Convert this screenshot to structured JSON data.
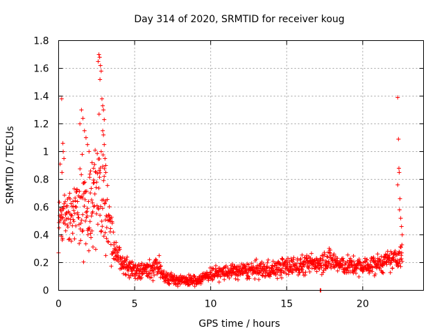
{
  "chart_data": {
    "type": "scatter",
    "title": "Day 314 of 2020, SRMTID for receiver koug",
    "xlabel": "GPS time / hours",
    "ylabel": "SRMTID / TECUs",
    "xlim": [
      0,
      24
    ],
    "ylim": [
      0,
      1.8
    ],
    "x_ticks": [
      0,
      5,
      10,
      15,
      20
    ],
    "x_tick_labels": [
      "0",
      "5",
      "10",
      "15",
      "20"
    ],
    "y_ticks": [
      0,
      0.2,
      0.4,
      0.6,
      0.8,
      1.0,
      1.2,
      1.4,
      1.6,
      1.8
    ],
    "y_tick_labels": [
      "0",
      "0.2",
      "0.4",
      "0.6",
      "0.8",
      "1",
      "1.2",
      "1.4",
      "1.6",
      "1.8"
    ],
    "grid": true,
    "marker": "plus",
    "color": "#ff0000",
    "profile": [
      [
        0.0,
        0.48,
        0.14
      ],
      [
        0.5,
        0.55,
        0.15
      ],
      [
        1.0,
        0.56,
        0.16
      ],
      [
        1.5,
        0.62,
        0.2
      ],
      [
        2.0,
        0.66,
        0.24
      ],
      [
        2.5,
        0.72,
        0.27
      ],
      [
        3.0,
        0.6,
        0.25
      ],
      [
        3.4,
        0.4,
        0.14
      ],
      [
        3.8,
        0.27,
        0.07
      ],
      [
        4.2,
        0.19,
        0.05
      ],
      [
        5.0,
        0.14,
        0.045
      ],
      [
        6.0,
        0.15,
        0.05
      ],
      [
        6.5,
        0.17,
        0.05
      ],
      [
        7.0,
        0.1,
        0.035
      ],
      [
        8.0,
        0.07,
        0.025
      ],
      [
        9.0,
        0.07,
        0.025
      ],
      [
        9.5,
        0.09,
        0.03
      ],
      [
        10.0,
        0.12,
        0.035
      ],
      [
        12.0,
        0.14,
        0.04
      ],
      [
        14.0,
        0.15,
        0.045
      ],
      [
        15.0,
        0.17,
        0.05
      ],
      [
        16.0,
        0.18,
        0.05
      ],
      [
        17.0,
        0.2,
        0.05
      ],
      [
        17.5,
        0.22,
        0.06
      ],
      [
        18.0,
        0.22,
        0.06
      ],
      [
        18.5,
        0.18,
        0.05
      ],
      [
        20.0,
        0.17,
        0.045
      ],
      [
        21.0,
        0.19,
        0.05
      ],
      [
        22.0,
        0.22,
        0.05
      ],
      [
        22.6,
        0.25,
        0.06
      ]
    ],
    "outliers": [
      [
        0.2,
        1.38
      ],
      [
        0.28,
        1.06
      ],
      [
        0.3,
        1.0
      ],
      [
        0.1,
        0.91
      ],
      [
        0.22,
        0.85
      ],
      [
        0.35,
        0.95
      ],
      [
        1.5,
        1.3
      ],
      [
        1.6,
        1.24
      ],
      [
        1.4,
        1.2
      ],
      [
        1.7,
        1.15
      ],
      [
        1.8,
        1.1
      ],
      [
        1.9,
        1.05
      ],
      [
        2.0,
        1.0
      ],
      [
        1.55,
        0.98
      ],
      [
        2.2,
        0.92
      ],
      [
        2.3,
        0.88
      ],
      [
        2.1,
        0.86
      ],
      [
        2.65,
        1.7
      ],
      [
        2.7,
        1.68
      ],
      [
        2.6,
        1.65
      ],
      [
        2.75,
        1.62
      ],
      [
        2.8,
        1.58
      ],
      [
        2.72,
        1.52
      ],
      [
        2.85,
        1.38
      ],
      [
        2.9,
        1.33
      ],
      [
        2.95,
        1.3
      ],
      [
        2.66,
        1.27
      ],
      [
        3.0,
        1.23
      ],
      [
        2.9,
        1.15
      ],
      [
        2.95,
        1.12
      ],
      [
        3.0,
        1.05
      ],
      [
        2.8,
        1.0
      ],
      [
        3.05,
        0.95
      ],
      [
        3.1,
        0.9
      ],
      [
        3.1,
        0.85
      ],
      [
        17.2,
        0.0
      ],
      [
        17.25,
        0.0
      ],
      [
        22.3,
        1.39
      ],
      [
        22.35,
        1.09
      ],
      [
        22.38,
        0.88
      ],
      [
        22.4,
        0.85
      ],
      [
        22.3,
        0.76
      ],
      [
        22.45,
        0.66
      ],
      [
        22.42,
        0.58
      ],
      [
        22.5,
        0.52
      ],
      [
        22.55,
        0.46
      ],
      [
        22.6,
        0.4
      ]
    ]
  }
}
